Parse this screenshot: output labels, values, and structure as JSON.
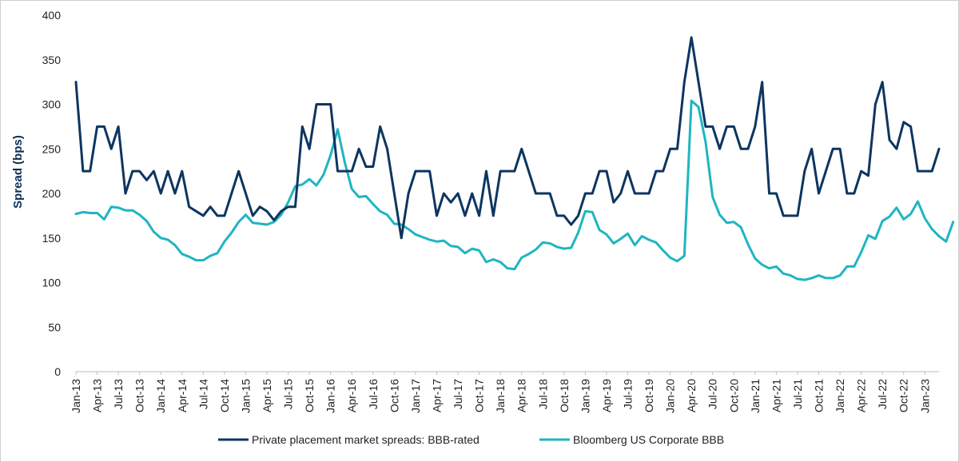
{
  "chart_data": {
    "type": "line",
    "title": "",
    "xlabel": "",
    "ylabel": "Spread (bps)",
    "ylim": [
      0,
      400
    ],
    "yticks": [
      0,
      50,
      100,
      150,
      200,
      250,
      300,
      350,
      400
    ],
    "grid": false,
    "legend_position": "bottom",
    "tick_labels": [
      "Jan-13",
      "Apr-13",
      "Jul-13",
      "Oct-13",
      "Jan-14",
      "Apr-14",
      "Jul-14",
      "Oct-14",
      "Jan-15",
      "Apr-15",
      "Jul-15",
      "Oct-15",
      "Jan-16",
      "Apr-16",
      "Jul-16",
      "Oct-16",
      "Jan-17",
      "Apr-17",
      "Jul-17",
      "Oct-17",
      "Jan-18",
      "Apr-18",
      "Jul-18",
      "Oct-18",
      "Jan-19",
      "Apr-19",
      "Jul-19",
      "Oct-19",
      "Jan-20",
      "Apr-20",
      "Jul-20",
      "Oct-20",
      "Jan-21",
      "Apr-21",
      "Jul-21",
      "Oct-21",
      "Jan-22",
      "Apr-22",
      "Jul-22",
      "Oct-22",
      "Jan-23"
    ],
    "series": [
      {
        "name": "Private placement market spreads: BBB-rated",
        "color": "#0d3560",
        "values": [
          325,
          225,
          225,
          275,
          275,
          250,
          275,
          200,
          225,
          225,
          215,
          225,
          200,
          225,
          200,
          225,
          185,
          180,
          175,
          185,
          175,
          175,
          200,
          225,
          200,
          175,
          185,
          180,
          170,
          180,
          185,
          185,
          275,
          250,
          300,
          300,
          300,
          225,
          225,
          225,
          250,
          230,
          230,
          275,
          250,
          200,
          150,
          200,
          225,
          225,
          225,
          175,
          200,
          190,
          200,
          175,
          200,
          175,
          225,
          175,
          225,
          225,
          225,
          250,
          225,
          200,
          200,
          200,
          175,
          175,
          165,
          175,
          200,
          200,
          225,
          225,
          190,
          200,
          225,
          200,
          200,
          200,
          225,
          225,
          250,
          250,
          325,
          375,
          325,
          275,
          275,
          250,
          275,
          275,
          250,
          250,
          275,
          325,
          200,
          200,
          175,
          175,
          175,
          225,
          250,
          200,
          225,
          250,
          250,
          200,
          200,
          225,
          220,
          300,
          325,
          260,
          250,
          280,
          275,
          225,
          225,
          225,
          250
        ]
      },
      {
        "name": "Bloomberg US Corporate BBB",
        "color": "#1fb5c2",
        "values": [
          177,
          179,
          178,
          178,
          171,
          185,
          184,
          181,
          181,
          176,
          169,
          157,
          150,
          148,
          142,
          132,
          129,
          125,
          125,
          130,
          133,
          146,
          156,
          168,
          176,
          167,
          166,
          165,
          168,
          176,
          190,
          208,
          210,
          216,
          209,
          221,
          243,
          272,
          235,
          205,
          196,
          197,
          188,
          180,
          176,
          166,
          165,
          160,
          154,
          151,
          148,
          146,
          147,
          141,
          140,
          133,
          138,
          136,
          123,
          126,
          123,
          116,
          115,
          128,
          132,
          137,
          145,
          144,
          140,
          138,
          139,
          156,
          180,
          179,
          159,
          154,
          144,
          149,
          155,
          142,
          152,
          148,
          145,
          136,
          128,
          124,
          130,
          304,
          297,
          258,
          196,
          176,
          167,
          168,
          162,
          143,
          127,
          120,
          116,
          118,
          110,
          108,
          104,
          103,
          105,
          108,
          105,
          105,
          108,
          118,
          118,
          134,
          153,
          149,
          169,
          174,
          184,
          171,
          177,
          191,
          172,
          160,
          152,
          146,
          168
        ]
      }
    ]
  }
}
